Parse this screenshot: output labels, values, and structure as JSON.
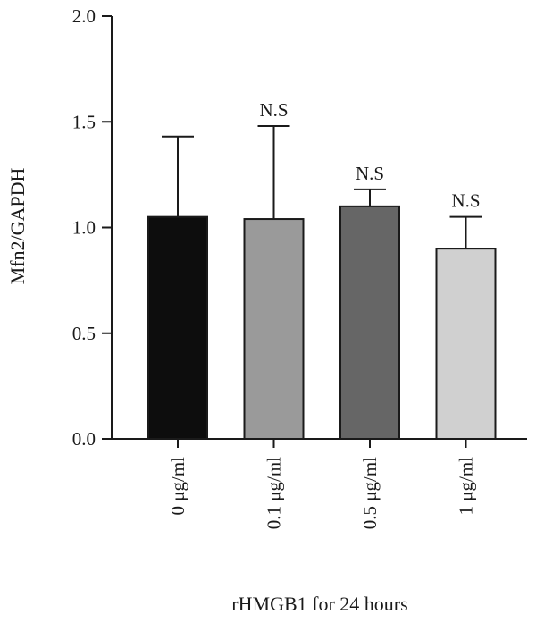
{
  "chart_data": {
    "type": "bar",
    "title": "",
    "xlabel": "rHMGB1 for 24 hours",
    "ylabel": "Mfn2/GAPDH",
    "ylim": [
      0,
      2.0
    ],
    "yticks": [
      "0.0",
      "0.5",
      "1.0",
      "1.5",
      "2.0"
    ],
    "ytick_values": [
      0,
      0.5,
      1.0,
      1.5,
      2.0
    ],
    "categories": [
      "0 μg/ml",
      "0.1 μg/ml",
      "0.5 μg/ml",
      "1 μg/ml"
    ],
    "values": [
      1.05,
      1.04,
      1.1,
      0.9
    ],
    "error_upper": [
      1.43,
      1.48,
      1.18,
      1.05
    ],
    "annotations": [
      "",
      "N.S",
      "N.S",
      "N.S"
    ],
    "bar_colors": [
      "#0d0d0d",
      "#9a9a9a",
      "#666666",
      "#d0d0d0"
    ],
    "grid": false,
    "legend": "none"
  }
}
